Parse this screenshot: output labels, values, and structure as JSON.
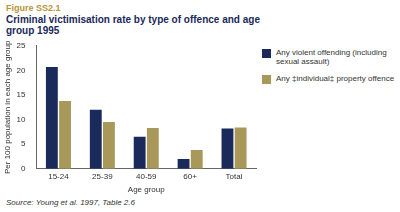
{
  "chart_data": {
    "type": "bar",
    "title": "Criminal victimisation rate by type of offence and age group 1995",
    "annotations": [
      "Figure SS2.1",
      "Source: Young et al. 1997, Table 2.6"
    ],
    "x_label": "Age group",
    "y_label": "Per 100 population in each age group",
    "categories": [
      "15-24",
      "25-39",
      "40-59",
      "60+",
      "Total"
    ],
    "series": [
      {
        "name": "Any violent offending (including sexual assault)",
        "color": "#1a2a5a",
        "values": [
          20.7,
          12,
          6.5,
          2,
          8.2
        ]
      },
      {
        "name": "Any ‡individual‡ property offence",
        "color": "#a8995a",
        "values": [
          13.8,
          9.5,
          8.3,
          3.8,
          8.4
        ]
      }
    ],
    "ylim": [
      0,
      25
    ],
    "yticks": [
      0,
      5,
      10,
      15,
      20,
      25
    ],
    "grid": false,
    "legend": "right"
  }
}
